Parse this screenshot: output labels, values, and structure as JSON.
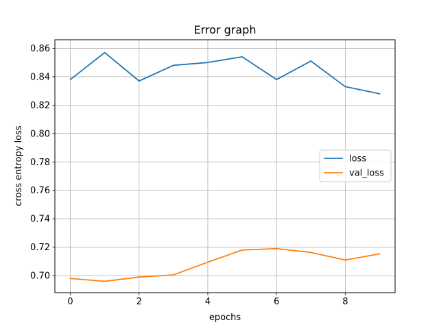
{
  "chart_data": {
    "type": "line",
    "title": "Error graph",
    "xlabel": "epochs",
    "ylabel": "cross entropy loss",
    "xlim": [
      -0.45,
      9.45
    ],
    "ylim": [
      0.688,
      0.866
    ],
    "xticks": [
      0,
      2,
      4,
      6,
      8
    ],
    "yticks": [
      0.7,
      0.72,
      0.74,
      0.76,
      0.78,
      0.8,
      0.82,
      0.84,
      0.86
    ],
    "ytick_labels": [
      "0.70",
      "0.72",
      "0.74",
      "0.76",
      "0.78",
      "0.80",
      "0.82",
      "0.84",
      "0.86"
    ],
    "grid": true,
    "legend_position": "center-right",
    "x": [
      0,
      1,
      2,
      3,
      4,
      5,
      6,
      7,
      8,
      9
    ],
    "series": [
      {
        "name": "loss",
        "color": "#1f77b4",
        "values": [
          0.838,
          0.857,
          0.837,
          0.848,
          0.85,
          0.854,
          0.838,
          0.851,
          0.833,
          0.828
        ]
      },
      {
        "name": "val_loss",
        "color": "#ff7f0e",
        "values": [
          0.698,
          0.696,
          0.699,
          0.7005,
          0.7095,
          0.718,
          0.719,
          0.7163,
          0.711,
          0.7153
        ]
      }
    ]
  }
}
